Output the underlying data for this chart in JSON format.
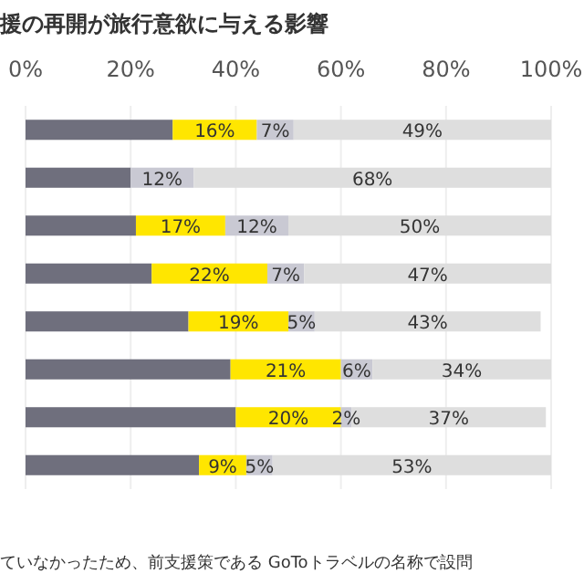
{
  "chart_data": {
    "type": "bar",
    "orientation": "horizontal",
    "stacked": true,
    "title": "援の再開が旅行意欲に与える影響",
    "categories": [
      null,
      null,
      null,
      null,
      null,
      null,
      null,
      null
    ],
    "series": [
      {
        "color": "#6f6f7d",
        "values": [
          28,
          20,
          21,
          24,
          31,
          39,
          40,
          33
        ]
      },
      {
        "color": "#ffe600",
        "values": [
          16,
          null,
          17,
          22,
          19,
          21,
          20,
          9
        ],
        "value_labels": [
          "16%",
          null,
          "17%",
          "22%",
          "19%",
          "21%",
          "20%",
          "9%"
        ]
      },
      {
        "color": "#c9c9d3",
        "values": [
          7,
          12,
          12,
          7,
          5,
          6,
          2,
          5
        ],
        "value_labels": [
          "7%",
          "12%",
          "12%",
          "7%",
          "5%",
          "6%",
          "2%",
          "5%"
        ]
      },
      {
        "color": "#dedede",
        "values": [
          49,
          68,
          50,
          47,
          43,
          34,
          37,
          53
        ],
        "value_labels": [
          "49%",
          "68%",
          "50%",
          "47%",
          "43%",
          "34%",
          "37%",
          "53%"
        ]
      }
    ],
    "xlim": [
      0,
      100
    ],
    "xticks": [
      {
        "value": 0,
        "label": "0%"
      },
      {
        "value": 20,
        "label": "20%"
      },
      {
        "value": 40,
        "label": "40%"
      },
      {
        "value": 60,
        "label": "60%"
      },
      {
        "value": 80,
        "label": "80%"
      },
      {
        "value": 100,
        "label": "100%"
      }
    ],
    "grid": "x",
    "annotations": [
      "ていなかったため、前支援策である GoToトラベルの名称で設問"
    ]
  }
}
